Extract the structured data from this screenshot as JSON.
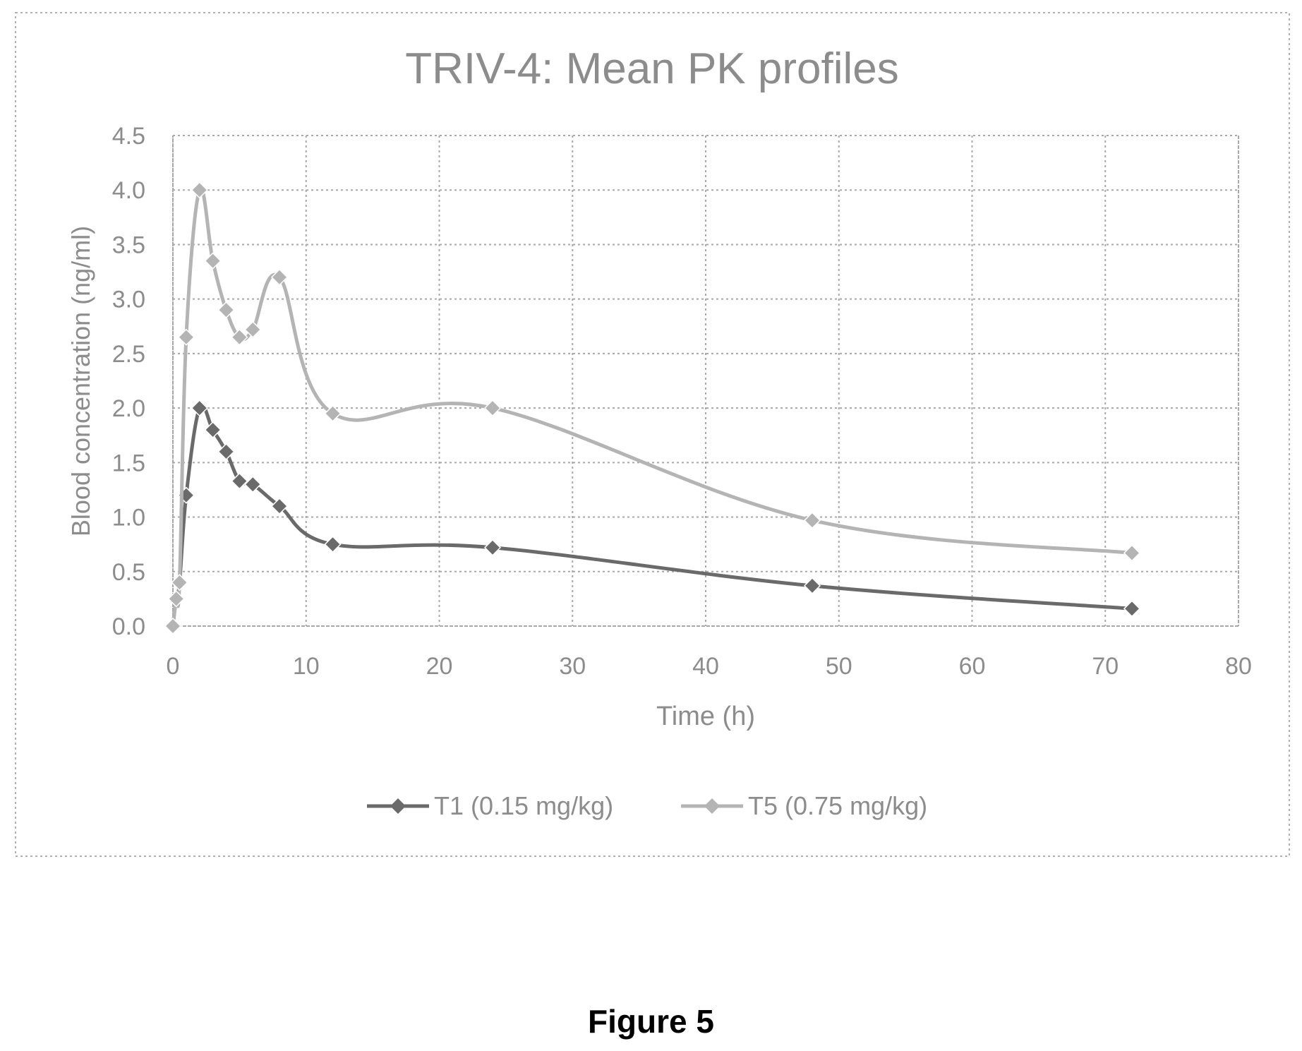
{
  "figure_caption": "Figure 5",
  "colors": {
    "T1": "#6a6a6a",
    "T5": "#b4b4b4",
    "grid": "#a8a8a8",
    "text": "#8c8c8c",
    "frame": "#b0b0b0"
  },
  "chart_data": {
    "type": "line",
    "title": "TRIV-4: Mean PK profiles",
    "xlabel": "Time (h)",
    "ylabel": "Blood concentration (ng/ml)",
    "xlim": [
      0,
      80
    ],
    "ylim": [
      0,
      4.5
    ],
    "x_ticks": [
      "0",
      "10",
      "20",
      "30",
      "40",
      "50",
      "60",
      "70",
      "80"
    ],
    "y_ticks": [
      "0.0",
      "0.5",
      "1.0",
      "1.5",
      "2.0",
      "2.5",
      "3.0",
      "3.5",
      "4.0",
      "4.5"
    ],
    "grid": true,
    "legend_position": "bottom",
    "series": [
      {
        "name": "T1 (0.15 mg/kg)",
        "color_key": "T1",
        "marker": "diamond",
        "points": [
          [
            0,
            0
          ],
          [
            0.25,
            0.25
          ],
          [
            0.5,
            0.4
          ],
          [
            1,
            1.2
          ],
          [
            2,
            2.0
          ],
          [
            3,
            1.8
          ],
          [
            4,
            1.6
          ],
          [
            5,
            1.33
          ],
          [
            6,
            1.3
          ],
          [
            8,
            1.1
          ],
          [
            12,
            0.75
          ],
          [
            24,
            0.72
          ],
          [
            48,
            0.37
          ],
          [
            72,
            0.16
          ]
        ]
      },
      {
        "name": "T5 (0.75 mg/kg)",
        "color_key": "T5",
        "marker": "diamond",
        "points": [
          [
            0,
            0
          ],
          [
            0.25,
            0.25
          ],
          [
            0.5,
            0.4
          ],
          [
            1,
            2.65
          ],
          [
            2,
            4.0
          ],
          [
            3,
            3.35
          ],
          [
            4,
            2.9
          ],
          [
            5,
            2.65
          ],
          [
            6,
            2.72
          ],
          [
            8,
            3.2
          ],
          [
            12,
            1.95
          ],
          [
            24,
            2.0
          ],
          [
            48,
            0.97
          ],
          [
            72,
            0.67
          ]
        ]
      }
    ]
  }
}
